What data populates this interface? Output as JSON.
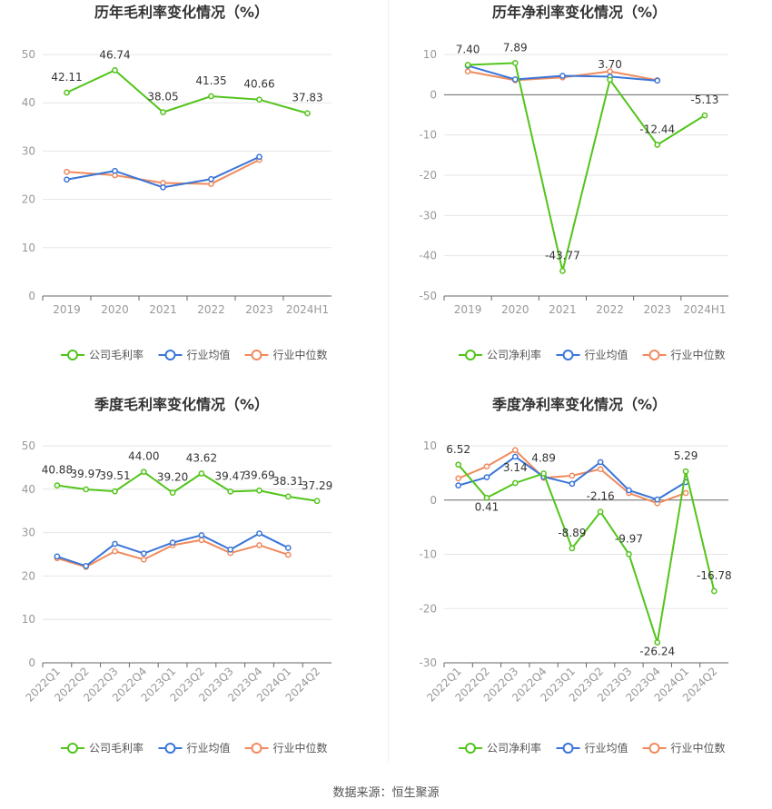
{
  "source": "数据来源：恒生聚源",
  "colors": {
    "company": "#52c41a",
    "avg": "#3a75d8",
    "median": "#f08a5d",
    "grid": "#e6e6e6",
    "axis": "#999999",
    "label": "#333333",
    "tick": "#999999"
  },
  "chart_data": [
    {
      "id": "annual-gross",
      "type": "line",
      "title": "历年毛利率变化情况（%）",
      "categories": [
        "2019",
        "2020",
        "2021",
        "2022",
        "2023",
        "2024H1"
      ],
      "ylim": [
        0,
        50
      ],
      "yticks": [
        0,
        10,
        20,
        30,
        40,
        50
      ],
      "grid": true,
      "legend_position": "bottom",
      "series": [
        {
          "key": "company",
          "name": "公司毛利率",
          "values": [
            42.11,
            46.74,
            38.05,
            41.35,
            40.66,
            37.83
          ],
          "labels": [
            "42.11",
            "46.74",
            "38.05",
            "41.35",
            "40.66",
            "37.83"
          ]
        },
        {
          "key": "avg",
          "name": "行业均值",
          "values": [
            24.1,
            25.9,
            22.5,
            24.2,
            28.8,
            null
          ]
        },
        {
          "key": "median",
          "name": "行业中位数",
          "values": [
            25.7,
            25.0,
            23.4,
            23.2,
            28.2,
            null
          ]
        }
      ]
    },
    {
      "id": "annual-net",
      "type": "line",
      "title": "历年净利率变化情况（%）",
      "categories": [
        "2019",
        "2020",
        "2021",
        "2022",
        "2023",
        "2024H1"
      ],
      "ylim": [
        -50,
        10
      ],
      "yticks": [
        -50,
        -40,
        -30,
        -20,
        -10,
        0,
        10
      ],
      "grid": true,
      "legend_position": "bottom",
      "series": [
        {
          "key": "company",
          "name": "公司净利率",
          "values": [
            7.4,
            7.89,
            -43.77,
            3.7,
            -12.44,
            -5.13
          ],
          "labels": [
            "7.40",
            "7.89",
            "-43.77",
            "3.70",
            "-12.44",
            "-5.13"
          ]
        },
        {
          "key": "avg",
          "name": "行业均值",
          "values": [
            7.2,
            3.8,
            4.7,
            4.5,
            3.5,
            null
          ]
        },
        {
          "key": "median",
          "name": "行业中位数",
          "values": [
            5.8,
            3.6,
            4.3,
            5.8,
            3.6,
            null
          ]
        }
      ]
    },
    {
      "id": "quarter-gross",
      "type": "line",
      "title": "季度毛利率变化情况（%）",
      "categories": [
        "2022Q1",
        "2022Q2",
        "2022Q3",
        "2022Q4",
        "2023Q1",
        "2023Q2",
        "2023Q3",
        "2023Q4",
        "2024Q1",
        "2024Q2"
      ],
      "ylim": [
        0,
        50
      ],
      "yticks": [
        0,
        10,
        20,
        30,
        40,
        50
      ],
      "grid": true,
      "legend_position": "bottom",
      "series": [
        {
          "key": "company",
          "name": "公司毛利率",
          "values": [
            40.88,
            39.97,
            39.51,
            44.0,
            39.2,
            43.62,
            39.47,
            39.69,
            38.31,
            37.29
          ],
          "labels": [
            "40.88",
            "39.97",
            "39.51",
            "44.00",
            "39.20",
            "43.62",
            "39.47",
            "39.69",
            "38.31",
            "37.29"
          ]
        },
        {
          "key": "avg",
          "name": "行业均值",
          "values": [
            24.5,
            22.3,
            27.4,
            25.2,
            27.7,
            29.4,
            26.1,
            29.8,
            26.5,
            null
          ]
        },
        {
          "key": "median",
          "name": "行业中位数",
          "values": [
            24.1,
            22.1,
            25.7,
            23.8,
            27.1,
            28.3,
            25.3,
            27.1,
            24.9,
            null
          ]
        }
      ]
    },
    {
      "id": "quarter-net",
      "type": "line",
      "title": "季度净利率变化情况（%）",
      "categories": [
        "2022Q1",
        "2022Q2",
        "2022Q3",
        "2022Q4",
        "2023Q1",
        "2023Q2",
        "2023Q3",
        "2023Q4",
        "2024Q1",
        "2024Q2"
      ],
      "ylim": [
        -30,
        10
      ],
      "yticks": [
        -30,
        -20,
        -10,
        0,
        10
      ],
      "grid": true,
      "legend_position": "bottom",
      "series": [
        {
          "key": "company",
          "name": "公司净利率",
          "values": [
            6.52,
            0.41,
            3.14,
            4.89,
            -8.89,
            -2.16,
            -9.97,
            -26.24,
            5.29,
            -16.78
          ],
          "labels": [
            "6.52",
            "0.41",
            "3.14",
            "4.89",
            "-8.89",
            "-2.16",
            "-9.97",
            "-26.24",
            "5.29",
            "-16.78"
          ]
        },
        {
          "key": "avg",
          "name": "行业均值",
          "values": [
            2.7,
            4.2,
            8.0,
            4.3,
            3.0,
            7.0,
            1.8,
            0.1,
            3.3,
            null
          ]
        },
        {
          "key": "median",
          "name": "行业中位数",
          "values": [
            4.0,
            6.2,
            9.2,
            4.1,
            4.5,
            5.7,
            1.3,
            -0.6,
            1.3,
            null
          ]
        }
      ]
    }
  ]
}
